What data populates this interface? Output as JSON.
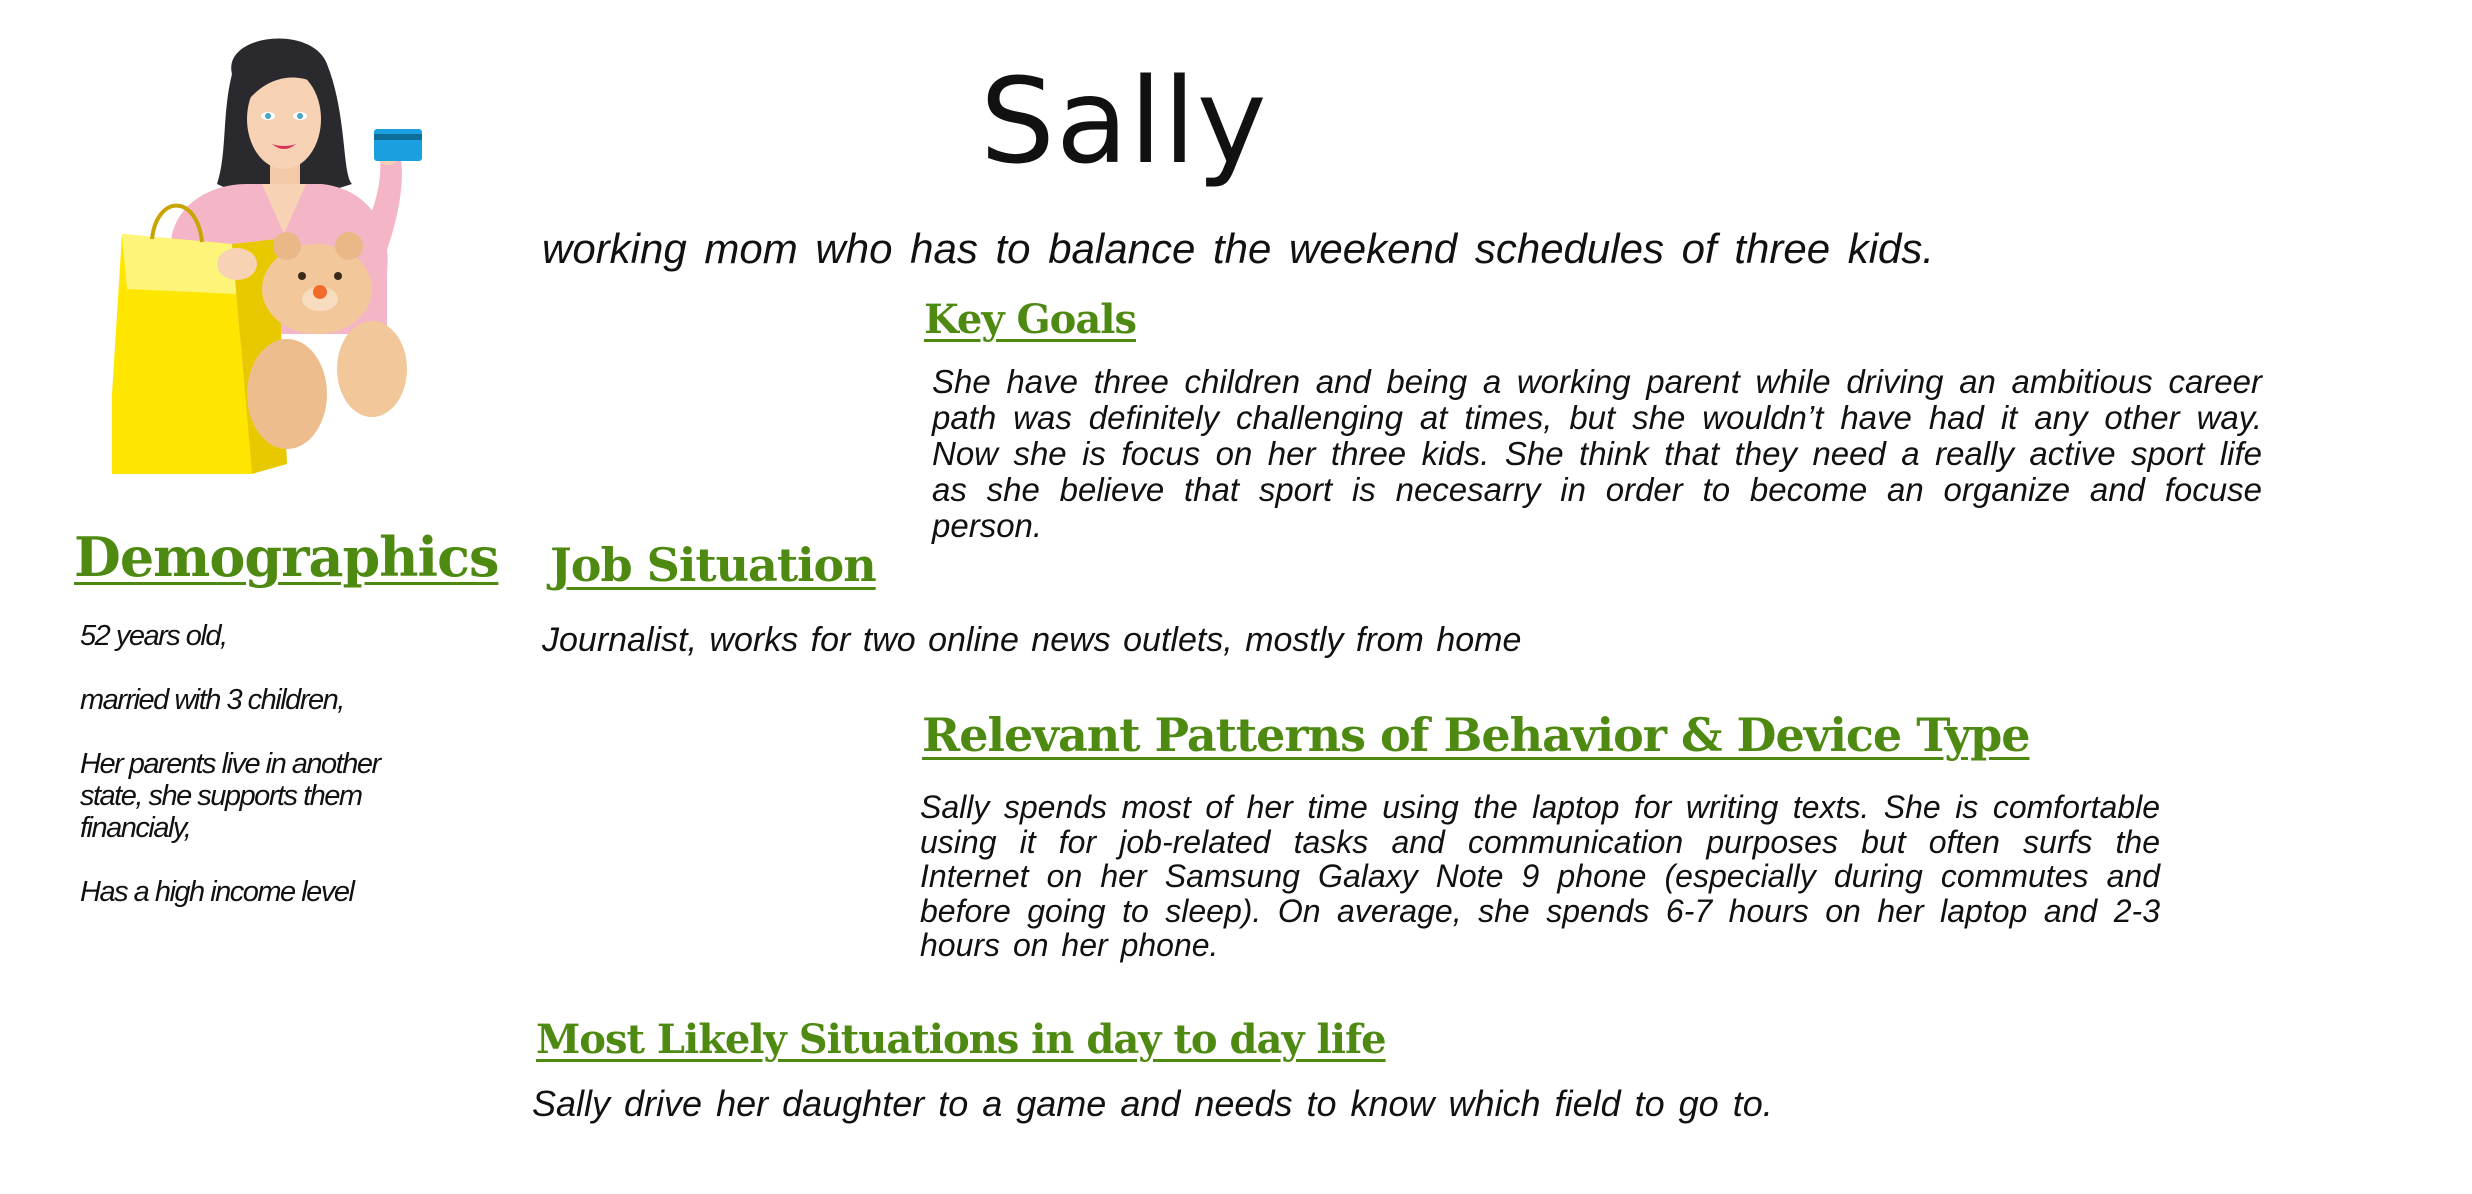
{
  "persona": {
    "name": "Sally",
    "tagline": "working mom who has to balance the weekend schedules of three kids."
  },
  "key_goals": {
    "heading": "Key Goals",
    "text": "She have three children and being a working parent while driving an ambitious career path was definitely challenging at times, but she wouldn’t have had it any other way. Now she is focus on her three kids. She think that they need a really active sport life as she believe that sport is necesarry in order to become an organize and focuse person."
  },
  "demographics": {
    "heading": "Demographics",
    "items": [
      "52 years old,",
      "married with 3 children,",
      "Her parents live in another state, she supports them financialy,",
      "Has a high income level"
    ]
  },
  "job_situation": {
    "heading": "Job Situation",
    "text": "Journalist, works for two online news outlets, mostly from home"
  },
  "behavior": {
    "heading": "Relevant Patterns of Behavior & Device Type",
    "text": "Sally spends most of her time using the laptop for writing texts. She is comfortable using it for job-related tasks and communication purposes but often surfs the Internet on her Samsung Galaxy Note 9 phone (especially during commutes and before going to sleep). On average, she spends 6-7 hours on her laptop and 2-3 hours on her phone."
  },
  "situations": {
    "heading": "Most Likely Situations in day to day life",
    "text": "Sally drive her daughter to a game and needs to know which field to go to."
  },
  "colors": {
    "heading": "#4e8a12",
    "text": "#111111",
    "background": "#ffffff"
  }
}
